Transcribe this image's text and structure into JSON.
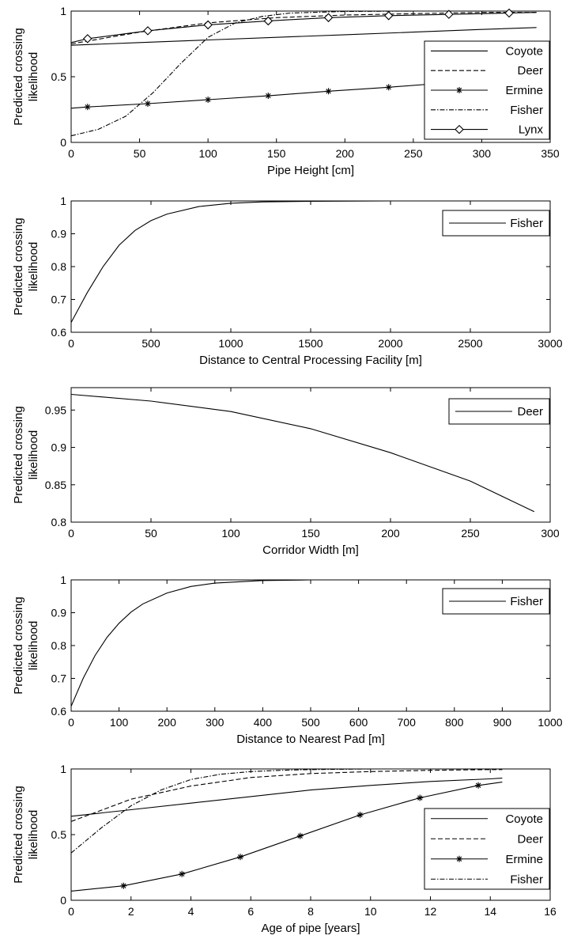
{
  "chart_data": [
    {
      "type": "line",
      "title": "",
      "xlabel": "Pipe Height [cm]",
      "ylabel": "Predicted crossing likelihood",
      "xlim": [
        0,
        350
      ],
      "ylim": [
        0,
        1
      ],
      "xticks": [
        "0",
        "50",
        "100",
        "150",
        "200",
        "250",
        "300",
        "350"
      ],
      "yticks": [
        "0",
        "0.5",
        "1"
      ],
      "legend_position": "right",
      "series": [
        {
          "name": "Coyote",
          "style": "solid",
          "x": [
            0,
            50,
            100,
            150,
            200,
            250,
            300,
            340
          ],
          "y": [
            0.74,
            0.76,
            0.78,
            0.8,
            0.82,
            0.84,
            0.86,
            0.875
          ]
        },
        {
          "name": "Deer",
          "style": "dashed",
          "x": [
            0,
            50,
            100,
            150,
            200,
            250,
            300,
            340
          ],
          "y": [
            0.75,
            0.84,
            0.91,
            0.95,
            0.97,
            0.98,
            0.99,
            0.99
          ]
        },
        {
          "name": "Ermine",
          "style": "solid-star",
          "x": [
            0,
            12,
            56,
            100,
            144,
            188,
            232,
            276,
            320,
            340
          ],
          "y": [
            0.26,
            0.27,
            0.295,
            0.325,
            0.355,
            0.39,
            0.42,
            0.455,
            0.49,
            0.51
          ]
        },
        {
          "name": "Fisher",
          "style": "dashdot",
          "x": [
            0,
            20,
            40,
            60,
            80,
            100,
            120,
            140,
            160,
            200,
            250,
            340
          ],
          "y": [
            0.05,
            0.1,
            0.2,
            0.38,
            0.6,
            0.8,
            0.91,
            0.96,
            0.985,
            0.997,
            1.0,
            1.0
          ]
        },
        {
          "name": "Lynx",
          "style": "solid-diamond",
          "x": [
            0,
            12,
            56,
            100,
            144,
            188,
            232,
            276,
            320,
            340
          ],
          "y": [
            0.76,
            0.79,
            0.85,
            0.895,
            0.925,
            0.95,
            0.965,
            0.975,
            0.985,
            0.99
          ]
        }
      ]
    },
    {
      "type": "line",
      "title": "",
      "xlabel": "Distance to Central Processing Facility [m]",
      "ylabel": "Predicted crossing likelihood",
      "xlim": [
        0,
        3000
      ],
      "ylim": [
        0.6,
        1
      ],
      "xticks": [
        "0",
        "500",
        "1000",
        "1500",
        "2000",
        "2500",
        "3000"
      ],
      "yticks": [
        "0.6",
        "0.7",
        "0.8",
        "0.9",
        "1"
      ],
      "legend_position": "top-right",
      "series": [
        {
          "name": "Fisher",
          "style": "solid",
          "x": [
            0,
            100,
            200,
            300,
            400,
            500,
            600,
            800,
            1000,
            1200,
            1500,
            2000,
            2500,
            2900
          ],
          "y": [
            0.63,
            0.72,
            0.8,
            0.865,
            0.91,
            0.94,
            0.96,
            0.983,
            0.993,
            0.997,
            0.999,
            1.0,
            1.0,
            1.0
          ]
        }
      ]
    },
    {
      "type": "line",
      "title": "",
      "xlabel": "Corridor Width [m]",
      "ylabel": "Predicted crossing likelihood",
      "xlim": [
        0,
        300
      ],
      "ylim": [
        0.8,
        0.98
      ],
      "xticks": [
        "0",
        "50",
        "100",
        "150",
        "200",
        "250",
        "300"
      ],
      "yticks": [
        "0.8",
        "0.85",
        "0.9",
        "0.95"
      ],
      "legend_position": "top-right",
      "series": [
        {
          "name": "Deer",
          "style": "solid",
          "x": [
            0,
            50,
            100,
            150,
            200,
            250,
            290
          ],
          "y": [
            0.971,
            0.962,
            0.948,
            0.925,
            0.893,
            0.855,
            0.814
          ]
        }
      ]
    },
    {
      "type": "line",
      "title": "",
      "xlabel": "Distance to Nearest Pad [m]",
      "ylabel": "Predicted crossing likelihood",
      "xlim": [
        0,
        1000
      ],
      "ylim": [
        0.6,
        1
      ],
      "xticks": [
        "0",
        "100",
        "200",
        "300",
        "400",
        "500",
        "600",
        "700",
        "800",
        "900",
        "1000"
      ],
      "yticks": [
        "0.6",
        "0.7",
        "0.8",
        "0.9",
        "1"
      ],
      "legend_position": "top-right",
      "series": [
        {
          "name": "Fisher",
          "style": "solid",
          "x": [
            0,
            25,
            50,
            75,
            100,
            125,
            150,
            200,
            250,
            300,
            400,
            500,
            700,
            970
          ],
          "y": [
            0.615,
            0.7,
            0.77,
            0.825,
            0.868,
            0.902,
            0.927,
            0.96,
            0.98,
            0.99,
            0.998,
            1.0,
            1.0,
            1.0
          ]
        }
      ]
    },
    {
      "type": "line",
      "title": "",
      "xlabel": "Age of pipe [years]",
      "ylabel": "Predicted crossing likelihood",
      "xlim": [
        0,
        16
      ],
      "ylim": [
        0,
        1
      ],
      "xticks": [
        "0",
        "2",
        "4",
        "6",
        "8",
        "10",
        "12",
        "14",
        "16"
      ],
      "yticks": [
        "0",
        "0.5",
        "1"
      ],
      "legend_position": "bottom-right",
      "series": [
        {
          "name": "Coyote",
          "style": "solid",
          "x": [
            0,
            2,
            4,
            6,
            8,
            10,
            12,
            14,
            14.4
          ],
          "y": [
            0.64,
            0.69,
            0.74,
            0.79,
            0.84,
            0.875,
            0.905,
            0.925,
            0.93
          ]
        },
        {
          "name": "Deer",
          "style": "dashed",
          "x": [
            0,
            2,
            4,
            6,
            8,
            10,
            12,
            14,
            14.4
          ],
          "y": [
            0.6,
            0.77,
            0.87,
            0.935,
            0.965,
            0.98,
            0.99,
            0.995,
            0.995
          ]
        },
        {
          "name": "Ermine",
          "style": "solid-star",
          "x": [
            0,
            1.75,
            3.7,
            5.65,
            7.65,
            9.65,
            11.65,
            13.6,
            14.4
          ],
          "y": [
            0.07,
            0.11,
            0.2,
            0.33,
            0.49,
            0.65,
            0.78,
            0.875,
            0.9
          ]
        },
        {
          "name": "Fisher",
          "style": "dashdot",
          "x": [
            0,
            1,
            2,
            3,
            4,
            5,
            6,
            7,
            8,
            10,
            12,
            14.4
          ],
          "y": [
            0.36,
            0.55,
            0.72,
            0.84,
            0.92,
            0.96,
            0.98,
            0.99,
            0.995,
            1.0,
            1.0,
            1.0
          ]
        }
      ]
    }
  ]
}
